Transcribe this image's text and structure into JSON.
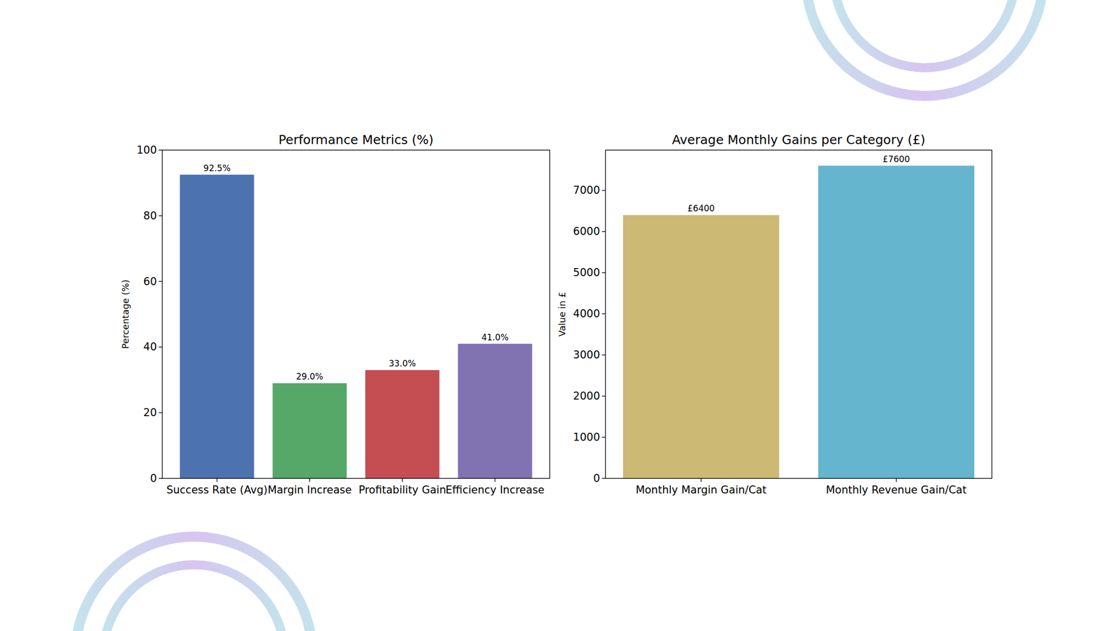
{
  "chart_data": [
    {
      "type": "bar",
      "title": "Performance Metrics (%)",
      "y_label": "Percentage (%)",
      "categories": [
        "Success Rate (Avg)",
        "Margin Increase",
        "Profitability Gain",
        "Efficiency Increase"
      ],
      "values": [
        92.5,
        29.0,
        33.0,
        41.0
      ],
      "value_labels": [
        "92.5%",
        "29.0%",
        "33.0%",
        "41.0%"
      ],
      "colors": [
        "#4c72b0",
        "#55a868",
        "#c44e52",
        "#8172b2"
      ],
      "ylim": [
        0,
        100
      ],
      "yticks": [
        0,
        20,
        40,
        60,
        80,
        100
      ],
      "grid": false,
      "data_labels": true
    },
    {
      "type": "bar",
      "title": "Average Monthly Gains per Category (£)",
      "y_label": "Value in £",
      "categories": [
        "Monthly Margin Gain/Cat",
        "Monthly Revenue Gain/Cat"
      ],
      "values": [
        6400,
        7600
      ],
      "value_labels": [
        "£6400",
        "£7600"
      ],
      "colors": [
        "#ccb974",
        "#64b5cd"
      ],
      "ylim": [
        0,
        7980
      ],
      "yticks": [
        0,
        1000,
        2000,
        3000,
        4000,
        5000,
        6000,
        7000
      ],
      "grid": false,
      "data_labels": true
    }
  ]
}
